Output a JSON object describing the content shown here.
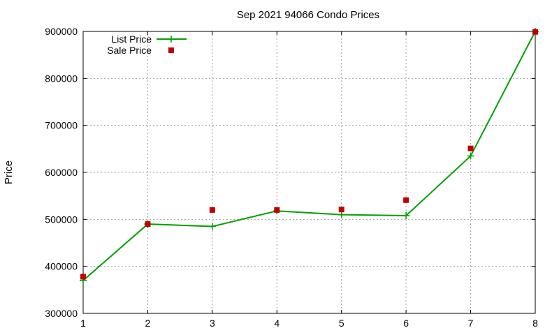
{
  "chart_data": {
    "type": "line",
    "title": "Sep 2021 94066 Condo Prices",
    "xlabel": "",
    "ylabel": "Price",
    "xlim": [
      1,
      8
    ],
    "ylim": [
      300000,
      900000
    ],
    "xticks": [
      1,
      2,
      3,
      4,
      5,
      6,
      7,
      8
    ],
    "yticks": [
      300000,
      400000,
      500000,
      600000,
      700000,
      800000,
      900000
    ],
    "grid": true,
    "legend_position": "top-left",
    "series": [
      {
        "name": "List Price",
        "kind": "line+points",
        "marker": "plus",
        "color": "#00a000",
        "x": [
          1,
          2,
          3,
          4,
          5,
          6,
          7,
          8
        ],
        "y": [
          370000,
          490000,
          485000,
          518000,
          510000,
          508000,
          635000,
          900000
        ]
      },
      {
        "name": "Sale Price",
        "kind": "points",
        "marker": "square",
        "color": "#c00000",
        "x": [
          1,
          2,
          3,
          4,
          5,
          6,
          7,
          8
        ],
        "y": [
          378000,
          490000,
          520000,
          520000,
          521000,
          541000,
          651000,
          899000
        ]
      }
    ]
  }
}
